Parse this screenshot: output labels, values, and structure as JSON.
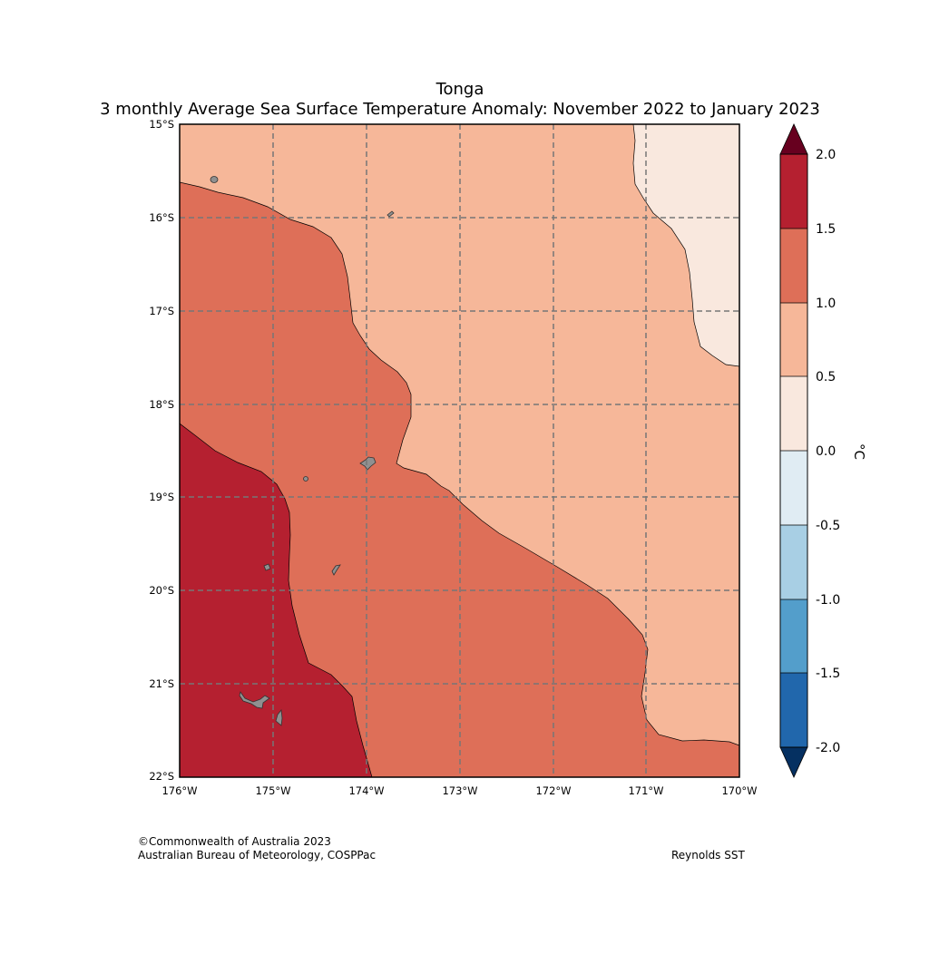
{
  "title": {
    "line1": "Tonga",
    "line2": "3 monthly Average Sea Surface Temperature Anomaly: November 2022 to January 2023"
  },
  "axes": {
    "lat_labels": [
      "15°S",
      "16°S",
      "17°S",
      "18°S",
      "19°S",
      "20°S",
      "21°S",
      "22°S"
    ],
    "lon_labels": [
      "176°W",
      "175°W",
      "174°W",
      "173°W",
      "172°W",
      "171°W",
      "170°W"
    ]
  },
  "colorbar": {
    "unit": "°C",
    "ticks": [
      "2.0",
      "1.5",
      "1.0",
      "0.5",
      "0.0",
      "-0.5",
      "-1.0",
      "-1.5",
      "-2.0"
    ],
    "colors": {
      "over": "#67001f",
      "b_1.5_2.0": "#b52030",
      "b_1.0_1.5": "#de6f58",
      "b_0.5_1.0": "#f6b799",
      "b_0.0_0.5": "#f9e8de",
      "b_-0.5_0.0": "#e0ecf3",
      "b_-1.0_-0.5": "#a8cfe4",
      "b_-1.5_-1.0": "#539ecb",
      "b_-2.0_-1.5": "#2167ac",
      "under": "#053061"
    }
  },
  "footer": {
    "copyright": "©Commonwealth of Australia 2023",
    "agency": "Australian Bureau of Meteorology, COSPPac",
    "source": "Reynolds SST"
  }
}
